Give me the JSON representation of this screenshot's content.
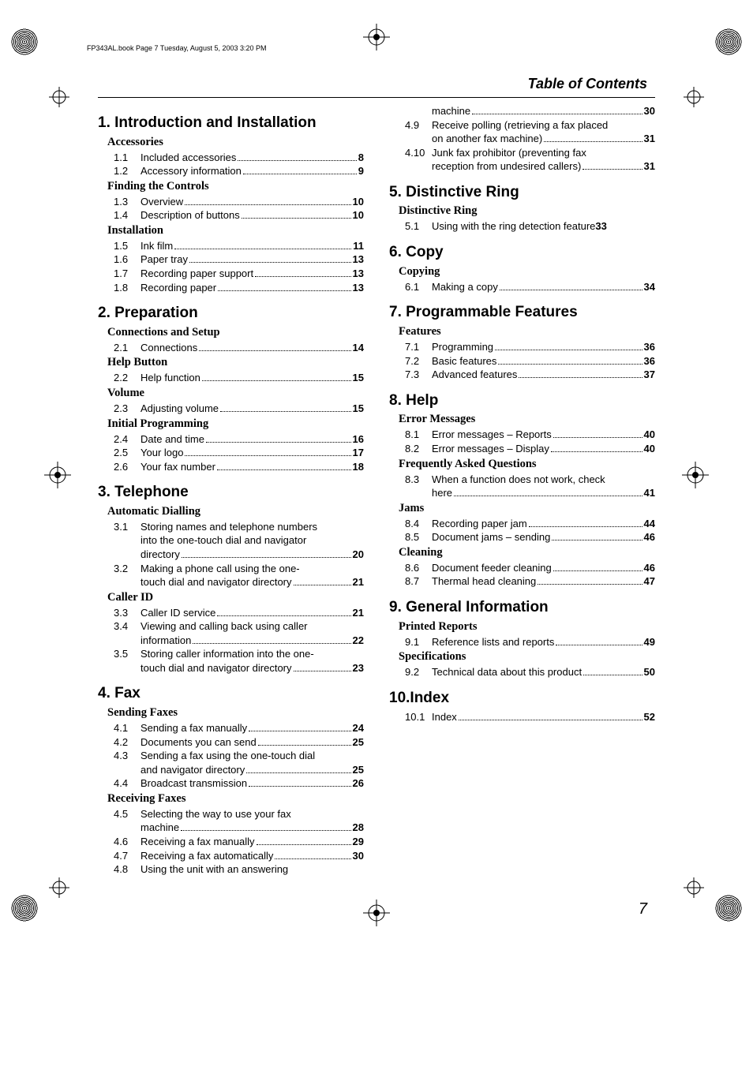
{
  "book_header": "FP343AL.book  Page 7  Tuesday, August 5, 2003  3:20 PM",
  "page_title": "Table of Contents",
  "footer_page": "7",
  "left": [
    {
      "type": "chapter",
      "num": "1.",
      "title": "Introduction and Installation"
    },
    {
      "type": "section",
      "title": "Accessories"
    },
    {
      "type": "entry",
      "num": "1.1",
      "text": "Included accessories",
      "page": "8"
    },
    {
      "type": "entry",
      "num": "1.2",
      "text": "Accessory information",
      "page": "9"
    },
    {
      "type": "section",
      "title": "Finding the Controls"
    },
    {
      "type": "entry",
      "num": "1.3",
      "text": "Overview",
      "page": "10"
    },
    {
      "type": "entry",
      "num": "1.4",
      "text": "Description of buttons",
      "page": "10"
    },
    {
      "type": "section",
      "title": "Installation"
    },
    {
      "type": "entry",
      "num": "1.5",
      "text": "Ink film",
      "page": "11"
    },
    {
      "type": "entry",
      "num": "1.6",
      "text": "Paper tray",
      "page": "13"
    },
    {
      "type": "entry",
      "num": "1.7",
      "text": "Recording paper support",
      "page": "13"
    },
    {
      "type": "entry",
      "num": "1.8",
      "text": "Recording paper",
      "page": "13"
    },
    {
      "type": "chapter",
      "num": "2.",
      "title": "Preparation"
    },
    {
      "type": "section",
      "title": "Connections and Setup"
    },
    {
      "type": "entry",
      "num": "2.1",
      "text": "Connections",
      "page": "14"
    },
    {
      "type": "section",
      "title": "Help Button"
    },
    {
      "type": "entry",
      "num": "2.2",
      "text": "Help function",
      "page": "15"
    },
    {
      "type": "section",
      "title": "Volume"
    },
    {
      "type": "entry",
      "num": "2.3",
      "text": "Adjusting volume",
      "page": "15"
    },
    {
      "type": "section",
      "title": "Initial Programming"
    },
    {
      "type": "entry",
      "num": "2.4",
      "text": "Date and time",
      "page": "16"
    },
    {
      "type": "entry",
      "num": "2.5",
      "text": "Your logo",
      "page": "17"
    },
    {
      "type": "entry",
      "num": "2.6",
      "text": "Your fax number",
      "page": "18"
    },
    {
      "type": "chapter",
      "num": "3.",
      "title": "Telephone"
    },
    {
      "type": "section",
      "title": "Automatic Dialling"
    },
    {
      "type": "entry-multi",
      "num": "3.1",
      "lines": [
        "Storing names and telephone numbers",
        "into the one-touch dial and navigator"
      ],
      "last": "directory",
      "page": "20"
    },
    {
      "type": "entry-multi",
      "num": "3.2",
      "lines": [
        "Making a phone call using the one-"
      ],
      "last": "touch dial and navigator directory",
      "page": "21"
    },
    {
      "type": "section",
      "title": "Caller ID"
    },
    {
      "type": "entry",
      "num": "3.3",
      "text": "Caller ID service",
      "page": "21"
    },
    {
      "type": "entry-multi",
      "num": "3.4",
      "lines": [
        "Viewing and calling back using caller"
      ],
      "last": "information",
      "page": "22"
    },
    {
      "type": "entry-multi",
      "num": "3.5",
      "lines": [
        "Storing caller information into the one-"
      ],
      "last": "touch dial and navigator directory",
      "page": "23"
    },
    {
      "type": "chapter",
      "num": "4.",
      "title": "Fax"
    },
    {
      "type": "section",
      "title": "Sending Faxes"
    },
    {
      "type": "entry",
      "num": "4.1",
      "text": "Sending a fax manually",
      "page": "24"
    },
    {
      "type": "entry",
      "num": "4.2",
      "text": "Documents you can send",
      "page": "25"
    },
    {
      "type": "entry-multi",
      "num": "4.3",
      "lines": [
        "Sending a fax using the one-touch dial"
      ],
      "last": "and navigator directory",
      "page": "25"
    },
    {
      "type": "entry",
      "num": "4.4",
      "text": "Broadcast transmission",
      "page": "26"
    },
    {
      "type": "section",
      "title": "Receiving Faxes"
    },
    {
      "type": "entry-multi",
      "num": "4.5",
      "lines": [
        "Selecting the way to use your fax"
      ],
      "last": "machine",
      "page": "28"
    },
    {
      "type": "entry",
      "num": "4.6",
      "text": "Receiving a fax manually",
      "page": "29"
    },
    {
      "type": "entry",
      "num": "4.7",
      "text": "Receiving a fax automatically",
      "page": "30"
    },
    {
      "type": "entry-open",
      "num": "4.8",
      "text": "Using the unit with an answering"
    }
  ],
  "right": [
    {
      "type": "entry-cont",
      "text": "machine",
      "page": "30"
    },
    {
      "type": "entry-multi",
      "num": "4.9",
      "lines": [
        "Receive polling (retrieving a fax placed"
      ],
      "last": "on another fax machine)",
      "page": "31"
    },
    {
      "type": "entry-multi",
      "num": "4.10",
      "lines": [
        "Junk fax prohibitor (preventing fax"
      ],
      "last": "reception from undesired callers)",
      "page": "31"
    },
    {
      "type": "chapter",
      "num": "5.",
      "title": "Distinctive Ring"
    },
    {
      "type": "section",
      "title": "Distinctive Ring"
    },
    {
      "type": "entry-nodots",
      "num": "5.1",
      "text": "Using with the ring detection feature",
      "page": "33"
    },
    {
      "type": "chapter",
      "num": "6.",
      "title": "Copy"
    },
    {
      "type": "section",
      "title": "Copying"
    },
    {
      "type": "entry",
      "num": "6.1",
      "text": "Making a copy",
      "page": "34"
    },
    {
      "type": "chapter",
      "num": "7.",
      "title": "Programmable Features"
    },
    {
      "type": "section",
      "title": "Features"
    },
    {
      "type": "entry",
      "num": "7.1",
      "text": "Programming",
      "page": "36"
    },
    {
      "type": "entry",
      "num": "7.2",
      "text": "Basic features",
      "page": "36"
    },
    {
      "type": "entry",
      "num": "7.3",
      "text": "Advanced features",
      "page": "37"
    },
    {
      "type": "chapter",
      "num": "8.",
      "title": "Help"
    },
    {
      "type": "section",
      "title": "Error Messages"
    },
    {
      "type": "entry",
      "num": "8.1",
      "text": "Error messages – Reports",
      "page": "40"
    },
    {
      "type": "entry",
      "num": "8.2",
      "text": "Error messages – Display",
      "page": "40"
    },
    {
      "type": "section",
      "title": "Frequently Asked Questions"
    },
    {
      "type": "entry-multi",
      "num": "8.3",
      "lines": [
        "When a function does not work, check"
      ],
      "last": "here",
      "page": "41"
    },
    {
      "type": "section",
      "title": "Jams"
    },
    {
      "type": "entry",
      "num": "8.4",
      "text": "Recording paper jam",
      "page": "44"
    },
    {
      "type": "entry",
      "num": "8.5",
      "text": "Document jams – sending",
      "page": "46"
    },
    {
      "type": "section",
      "title": "Cleaning"
    },
    {
      "type": "entry",
      "num": "8.6",
      "text": "Document feeder cleaning",
      "page": "46"
    },
    {
      "type": "entry",
      "num": "8.7",
      "text": "Thermal head cleaning",
      "page": "47"
    },
    {
      "type": "chapter",
      "num": "9.",
      "title": "General Information"
    },
    {
      "type": "section",
      "title": "Printed Reports"
    },
    {
      "type": "entry",
      "num": "9.1",
      "text": "Reference lists and reports",
      "page": "49"
    },
    {
      "type": "section",
      "title": "Specifications"
    },
    {
      "type": "entry",
      "num": "9.2",
      "text": "Technical data about this product",
      "page": "50"
    },
    {
      "type": "chapter",
      "num": "10.",
      "title": "Index",
      "nospace": true
    },
    {
      "type": "entry",
      "num": "10.1",
      "text": "Index",
      "page": "52"
    }
  ]
}
